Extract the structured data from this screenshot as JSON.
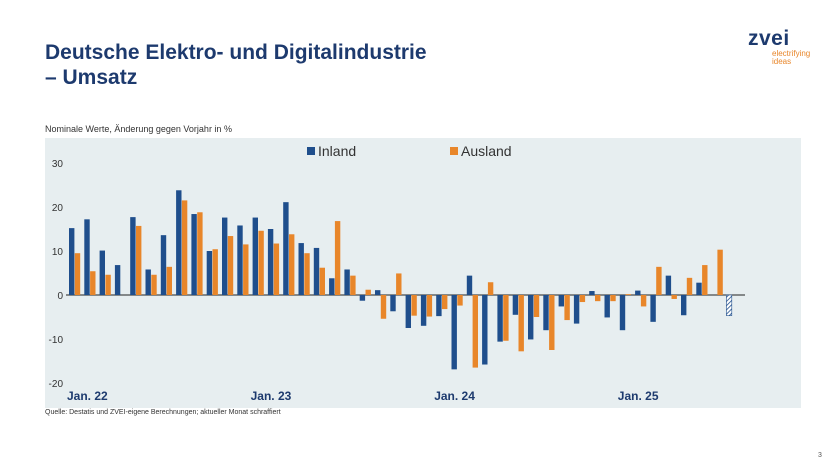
{
  "title": "Deutsche Elektro- und Digitalindustrie",
  "subtitle": "– Umsatz",
  "logo": {
    "word": "zvei",
    "tagline_1": "electrifying",
    "tagline_2": "ideas"
  },
  "note": "Nominale Werte, Änderung gegen Vorjahr in %",
  "source": "Quelle: Destatis und ZVEI-eigene Berechnungen; aktueller Monat schraffiert",
  "page_number": "3",
  "colors": {
    "inland": "#1f4e8c",
    "ausland": "#e8862a",
    "plot_bg": "#e7eef0",
    "title": "#1d3a6e"
  },
  "chart_data": {
    "type": "bar",
    "x_ticks": [
      "Jan. 22",
      "Jan. 23",
      "Jan. 24",
      "Jan. 25"
    ],
    "y_ticks": [
      "30",
      "20",
      "10",
      "0",
      "-10",
      "-20"
    ],
    "ylim": [
      -21,
      31
    ],
    "legend": "top-center",
    "categories": [
      "2022-01",
      "2022-02",
      "2022-03",
      "2022-04",
      "2022-05",
      "2022-06",
      "2022-07",
      "2022-08",
      "2022-09",
      "2022-10",
      "2022-11",
      "2022-12",
      "2023-01",
      "2023-02",
      "2023-03",
      "2023-04",
      "2023-05",
      "2023-06",
      "2023-07",
      "2023-08",
      "2023-09",
      "2023-10",
      "2023-11",
      "2023-12",
      "2024-01",
      "2024-02",
      "2024-03",
      "2024-04",
      "2024-05",
      "2024-06",
      "2024-07",
      "2024-08",
      "2024-09",
      "2024-10",
      "2024-11",
      "2024-12",
      "2025-01",
      "2025-02",
      "2025-03",
      "2025-04",
      "2025-05",
      "2025-06",
      "2025-07",
      "2025-08"
    ],
    "series": [
      {
        "name": "Inland",
        "values": [
          15.2,
          17.2,
          10.1,
          6.8,
          17.7,
          5.8,
          13.6,
          23.8,
          18.4,
          10.0,
          17.6,
          15.8,
          17.6,
          15.0,
          21.1,
          11.8,
          10.7,
          3.8,
          5.8,
          -1.3,
          1.1,
          -3.7,
          -7.5,
          -7.0,
          -4.8,
          -16.9,
          4.4,
          -15.8,
          -10.6,
          -4.5,
          -10.1,
          -8.0,
          -2.6,
          -6.5,
          0.9,
          -5.1,
          -8.0,
          1.0,
          -6.1,
          4.4,
          -4.6,
          2.8,
          null,
          null
        ]
      },
      {
        "name": "Ausland",
        "values": [
          9.5,
          5.4,
          4.6,
          null,
          15.7,
          4.6,
          6.4,
          21.5,
          18.8,
          10.4,
          13.4,
          11.5,
          14.6,
          11.7,
          13.8,
          9.5,
          6.2,
          16.8,
          4.4,
          1.2,
          -5.4,
          4.9,
          -4.7,
          -4.9,
          -3.2,
          -2.4,
          -16.5,
          2.9,
          -10.4,
          -12.8,
          -5.0,
          -12.5,
          -5.7,
          -1.6,
          -1.4,
          -1.4,
          0.2,
          -2.6,
          6.4,
          -0.9,
          3.9,
          6.8,
          10.3,
          null
        ]
      }
    ],
    "hatched_current_month": {
      "series": "Inland",
      "value": -4.7
    }
  }
}
